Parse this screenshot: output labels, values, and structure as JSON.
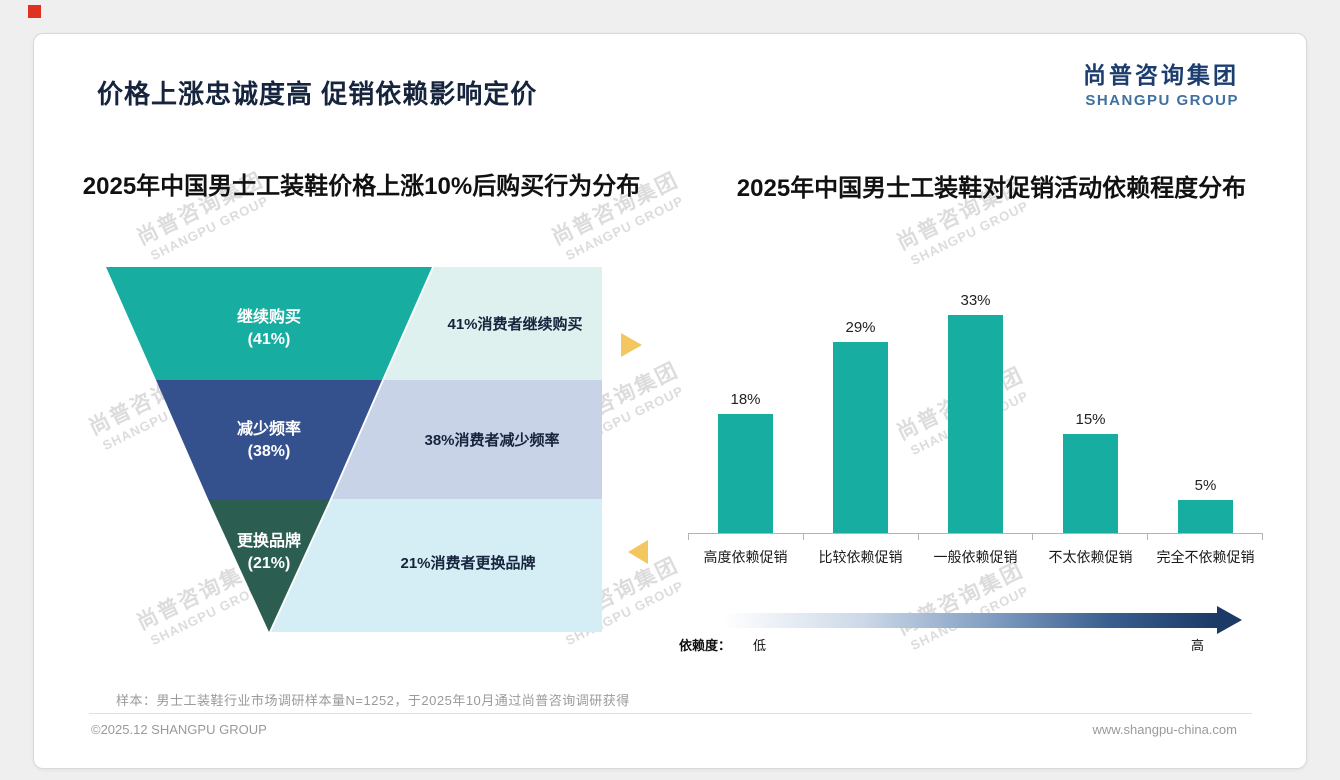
{
  "page": {
    "background": "#efefef",
    "accent_red": "#e0301e"
  },
  "header": {
    "title": "价格上涨忠诚度高 促销依赖影响定价",
    "logo_cn": "尚普咨询集团",
    "logo_en": "SHANGPU GROUP"
  },
  "watermark": {
    "line1": "尚普咨询集团",
    "line2": "SHANGPU GROUP"
  },
  "chart_data": [
    {
      "type": "funnel",
      "title": "2025年中国男士工装鞋价格上涨10%后购买行为分布",
      "categories": [
        "继续购买",
        "减少频率",
        "更换品牌"
      ],
      "values": [
        41,
        38,
        21
      ],
      "arrow_color": "#F3C65F",
      "segments": [
        {
          "label": "继续购买",
          "pct": "(41%)",
          "value": 41,
          "note": "41%消费者继续购买",
          "color": "#17ADA0",
          "note_bg": "#DEF1EE"
        },
        {
          "label": "减少频率",
          "pct": "(38%)",
          "value": 38,
          "note": "38%消费者减少频率",
          "color": "#34508D",
          "note_bg": "#C9D3E8"
        },
        {
          "label": "更换品牌",
          "pct": "(21%)",
          "value": 21,
          "note": "21%消费者更换品牌",
          "color": "#2B5D50",
          "note_bg": "#D5EEF6"
        }
      ]
    },
    {
      "type": "bar",
      "title": "2025年中国男士工装鞋对促销活动依赖程度分布",
      "categories": [
        "高度依赖促销",
        "比较依赖促销",
        "一般依赖促销",
        "不太依赖促销",
        "完全不依赖促销"
      ],
      "values": [
        18,
        29,
        33,
        15,
        5
      ],
      "value_labels": [
        "18%",
        "29%",
        "33%",
        "15%",
        "5%"
      ],
      "value_suffix": "%",
      "bar_color": "#17ADA0",
      "ylim": [
        0,
        35
      ],
      "grid": false,
      "legend": false,
      "axis_note": {
        "label": "依赖度：",
        "low": "低",
        "high": "高"
      }
    }
  ],
  "footnote": "样本：男士工装鞋行业市场调研样本量N=1252，于2025年10月通过尚普咨询调研获得",
  "footer": {
    "left": "©2025.12 SHANGPU GROUP",
    "right": "www.shangpu-china.com"
  }
}
